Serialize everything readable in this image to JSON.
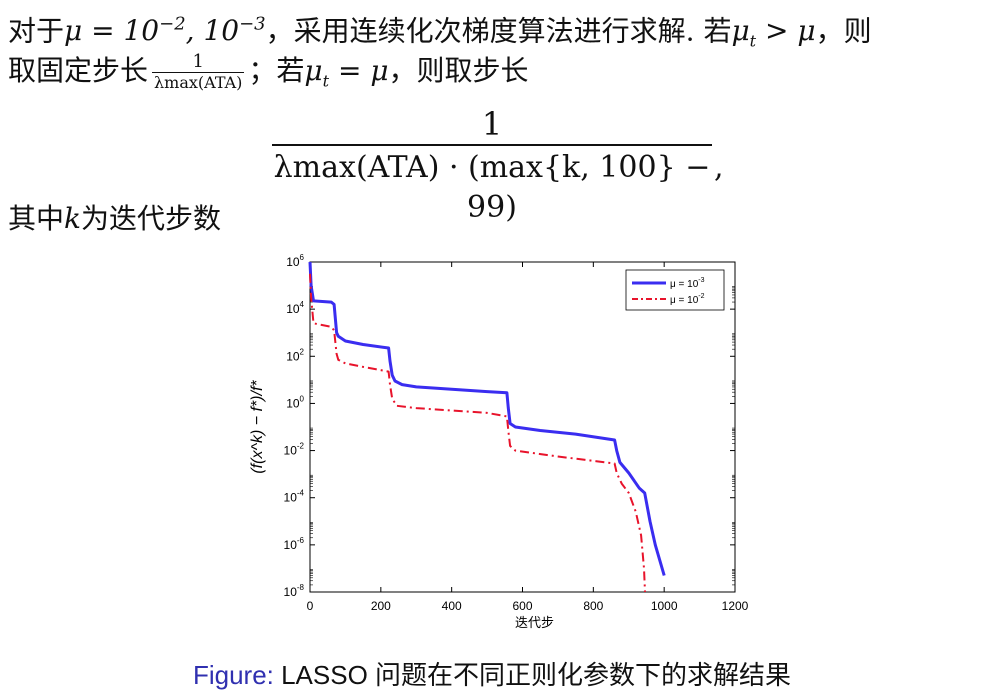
{
  "text": {
    "line1_a": "对于",
    "line1_mu": "μ = 10",
    "line1_exp1": "−2",
    "line1_sep": ", 10",
    "line1_exp2": "−3",
    "line1_b": "，采用连续化次梯度算法进行求解. 若",
    "line1_mut": "μ",
    "line1_t": "t",
    "line1_gt": " > μ",
    "line1_c": "，则",
    "line2_a": "取固定步长",
    "line2_num": "1",
    "line2_den": "λmax(ATA)",
    "line2_b": "；若",
    "line2_eq": " = μ",
    "line2_c": "，则取步长",
    "big_num": "1",
    "big_den": "λmax(ATA) · (max{k, 100} − 99)",
    "big_comma": ",",
    "line3_a": "其中",
    "line3_k": "k",
    "line3_b": "为迭代步数"
  },
  "chart_data": {
    "type": "line",
    "xlabel": "迭代步",
    "ylabel": "(f(x^k) − f*)/f*",
    "x_ticks": [
      "0",
      "200",
      "400",
      "600",
      "800",
      "1000",
      "1200"
    ],
    "y_ticks": [
      "10^6",
      "10^4",
      "10^2",
      "10^0",
      "10^-2",
      "10^-4",
      "10^-6",
      "10^-8"
    ],
    "xlim": [
      0,
      1200
    ],
    "ylim_log10": [
      -8,
      6
    ],
    "yscale": "log",
    "legend_position": "top-right",
    "series": [
      {
        "name": "μ = 10^-3",
        "color": "#3a2df0",
        "style": "solid",
        "points": [
          [
            0,
            6
          ],
          [
            3,
            5
          ],
          [
            10,
            4.35
          ],
          [
            60,
            4.3
          ],
          [
            68,
            4.2
          ],
          [
            75,
            3.0
          ],
          [
            80,
            2.85
          ],
          [
            100,
            2.65
          ],
          [
            150,
            2.5
          ],
          [
            222,
            2.35
          ],
          [
            226,
            1.8
          ],
          [
            232,
            1.2
          ],
          [
            240,
            0.95
          ],
          [
            260,
            0.8
          ],
          [
            300,
            0.7
          ],
          [
            400,
            0.6
          ],
          [
            500,
            0.5
          ],
          [
            556,
            0.45
          ],
          [
            560,
            -0.2
          ],
          [
            565,
            -0.85
          ],
          [
            580,
            -1.0
          ],
          [
            650,
            -1.15
          ],
          [
            750,
            -1.3
          ],
          [
            860,
            -1.55
          ],
          [
            866,
            -2.0
          ],
          [
            875,
            -2.5
          ],
          [
            900,
            -2.95
          ],
          [
            930,
            -3.6
          ],
          [
            945,
            -3.8
          ],
          [
            960,
            -5.0
          ],
          [
            975,
            -6.0
          ],
          [
            1000,
            -7.3
          ]
        ]
      },
      {
        "name": "μ = 10^-2",
        "color": "#e8132b",
        "style": "dash-dot",
        "points": [
          [
            0,
            5.5
          ],
          [
            3,
            4.5
          ],
          [
            10,
            3.4
          ],
          [
            60,
            3.25
          ],
          [
            68,
            3.1
          ],
          [
            75,
            2.1
          ],
          [
            80,
            1.85
          ],
          [
            100,
            1.7
          ],
          [
            150,
            1.55
          ],
          [
            222,
            1.35
          ],
          [
            226,
            0.8
          ],
          [
            232,
            0.2
          ],
          [
            245,
            -0.1
          ],
          [
            300,
            -0.2
          ],
          [
            400,
            -0.3
          ],
          [
            500,
            -0.4
          ],
          [
            556,
            -0.55
          ],
          [
            560,
            -1.15
          ],
          [
            565,
            -1.8
          ],
          [
            580,
            -2.0
          ],
          [
            700,
            -2.25
          ],
          [
            860,
            -2.55
          ],
          [
            866,
            -2.95
          ],
          [
            880,
            -3.4
          ],
          [
            900,
            -3.8
          ],
          [
            920,
            -4.6
          ],
          [
            935,
            -5.6
          ],
          [
            943,
            -7.0
          ],
          [
            946,
            -8.0
          ]
        ]
      }
    ]
  },
  "caption": {
    "label": "Figure:",
    "text": " LASSO 问题在不同正则化参数下的求解结果"
  }
}
